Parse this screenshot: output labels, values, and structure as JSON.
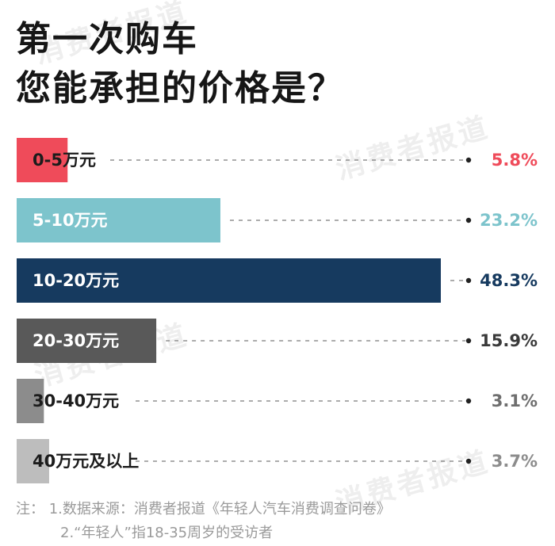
{
  "title_line1": "第一次购车",
  "title_line2": "您能承担的价格是？",
  "watermark": "消费者报道",
  "notes": {
    "line1": "注：  1.数据来源：消费者报道《年轻人汽车消费调查问卷》",
    "line2": "2.“年轻人”指18-35周岁的受访者"
  },
  "chart_data": {
    "type": "bar",
    "orientation": "horizontal",
    "categories": [
      "0-5万元",
      "5-10万元",
      "10-20万元",
      "20-30万元",
      "30-40万元",
      "40万元及以上"
    ],
    "values": [
      5.8,
      23.2,
      48.3,
      15.9,
      3.1,
      3.7
    ],
    "value_labels": [
      "5.8%",
      "23.2%",
      "48.3%",
      "15.9%",
      "3.1%",
      "3.7%"
    ],
    "unit": "%",
    "xlim": [
      0,
      48.3
    ],
    "colors": [
      "#ef4b5a",
      "#7dc4cc",
      "#163a5f",
      "#595959",
      "#8c8c8c",
      "#bdbdbd"
    ],
    "label_colors": [
      "#1c1c1c",
      "#ffffff",
      "#ffffff",
      "#ffffff",
      "#1c1c1c",
      "#1c1c1c"
    ],
    "value_colors": [
      "#ef4b5a",
      "#7dc4cc",
      "#163a5f",
      "#3a3a3a",
      "#6e6e6e",
      "#8c8c8c"
    ],
    "grid": false,
    "legend": "none"
  }
}
